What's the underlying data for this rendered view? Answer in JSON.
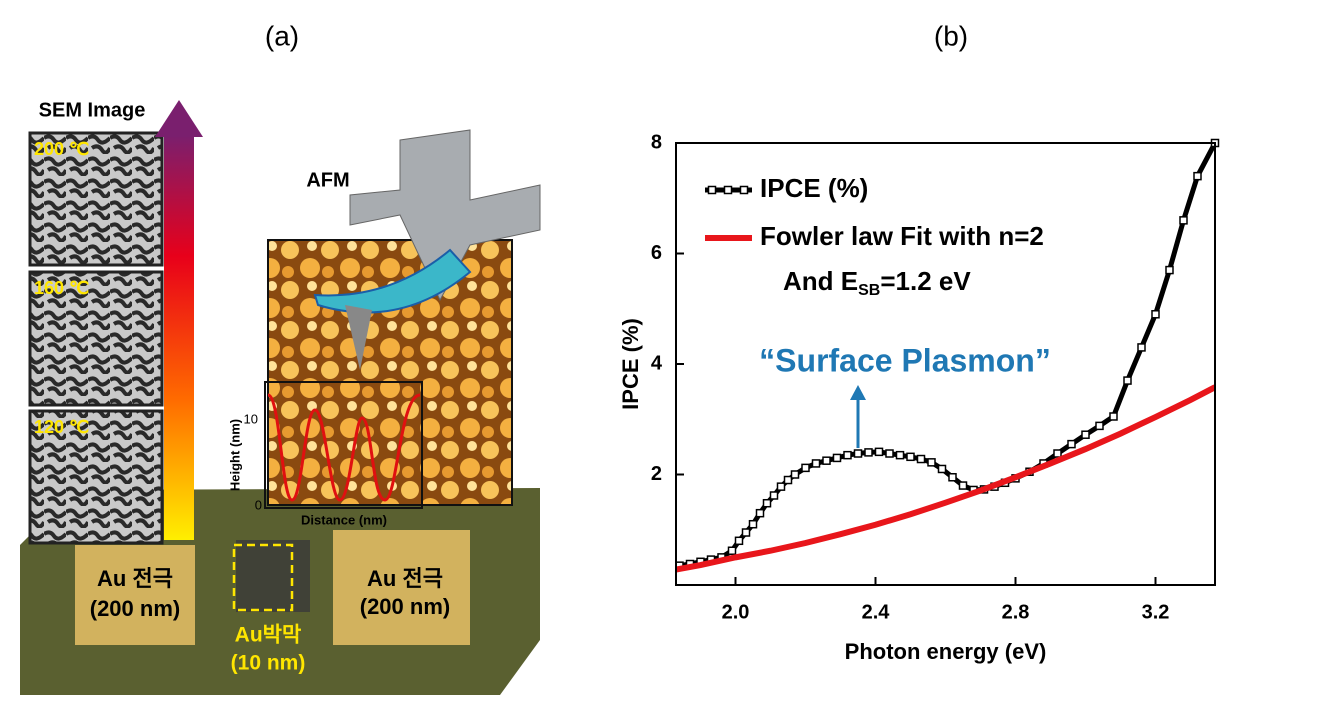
{
  "panel_a": {
    "label": "(a)",
    "sem_title": "SEM Image",
    "sem_temps": [
      "200 ℃",
      "160 ℃",
      "120 ℃"
    ],
    "afm_title": "AFM",
    "afm_y_label": "Height (nm)",
    "afm_x_label": "Distance (nm)",
    "afm_yticks": [
      "10",
      "0"
    ],
    "left_electrode": [
      "Au 전극",
      "(200 nm)"
    ],
    "right_electrode": [
      "Au 전극",
      "(200 nm)"
    ],
    "film": [
      "Au박막",
      "(10 nm)"
    ]
  },
  "panel_b_label": "(b)",
  "chart_data": {
    "type": "line",
    "x_label": "Photon energy (eV)",
    "y_label": "IPCE (%)",
    "xlim": [
      1.83,
      3.37
    ],
    "ylim": [
      0,
      8
    ],
    "xticks": [
      {
        "value": 2,
        "label": "2.0"
      },
      2.4,
      2.8,
      3.2
    ],
    "yticks": [
      2,
      4,
      6,
      8
    ],
    "series": [
      {
        "name": "IPCE (%)",
        "color": "#000000",
        "markers": true,
        "x": [
          1.84,
          1.87,
          1.9,
          1.93,
          1.96,
          1.99,
          2.01,
          2.03,
          2.05,
          2.07,
          2.09,
          2.11,
          2.13,
          2.15,
          2.17,
          2.2,
          2.23,
          2.26,
          2.29,
          2.32,
          2.35,
          2.38,
          2.41,
          2.44,
          2.47,
          2.5,
          2.53,
          2.56,
          2.59,
          2.62,
          2.65,
          2.68,
          2.71,
          2.74,
          2.77,
          2.8,
          2.84,
          2.88,
          2.92,
          2.96,
          3.0,
          3.04,
          3.08,
          3.12,
          3.16,
          3.2,
          3.24,
          3.28,
          3.32,
          3.37
        ],
        "values": [
          0.35,
          0.38,
          0.42,
          0.46,
          0.5,
          0.62,
          0.8,
          0.95,
          1.1,
          1.3,
          1.48,
          1.62,
          1.78,
          1.9,
          2.0,
          2.12,
          2.2,
          2.25,
          2.3,
          2.35,
          2.38,
          2.4,
          2.41,
          2.38,
          2.35,
          2.32,
          2.28,
          2.22,
          2.1,
          1.95,
          1.8,
          1.72,
          1.73,
          1.78,
          1.85,
          1.93,
          2.05,
          2.2,
          2.38,
          2.55,
          2.72,
          2.88,
          3.05,
          3.7,
          4.3,
          4.9,
          5.7,
          6.6,
          7.4,
          8.0
        ]
      },
      {
        "name": "Fowler law Fit with n=2",
        "color": "#e8161b",
        "markers": false,
        "x": [
          1.83,
          1.9,
          2.0,
          2.1,
          2.2,
          2.3,
          2.4,
          2.5,
          2.6,
          2.7,
          2.8,
          2.9,
          3.0,
          3.1,
          3.2,
          3.3,
          3.37
        ],
        "values": [
          0.28,
          0.36,
          0.5,
          0.62,
          0.76,
          0.92,
          1.09,
          1.28,
          1.49,
          1.71,
          1.95,
          2.2,
          2.46,
          2.74,
          3.04,
          3.35,
          3.58
        ]
      }
    ],
    "legend_note": {
      "prefix": "And E",
      "sub": "SB",
      "suffix": "=1.2 eV"
    },
    "annotation": "“Surface Plasmon”"
  }
}
